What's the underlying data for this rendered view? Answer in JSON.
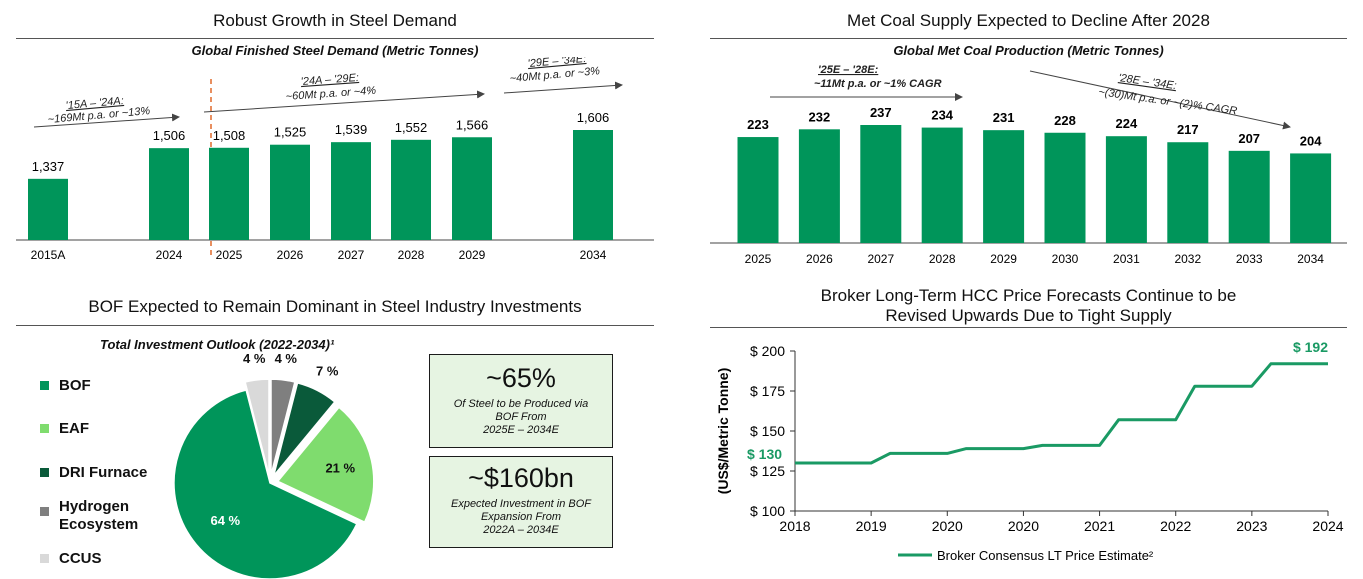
{
  "steel": {
    "title": "Robust Growth in Steel Demand",
    "subtitle": "Global Finished Steel Demand (Metric Tonnes)",
    "annotations": [
      {
        "line1": "'15A – '24A:",
        "line2": "~169Mt p.a. or ~13%"
      },
      {
        "line1": "'24A – '29E:",
        "line2": "~60Mt p.a. or ~4%"
      },
      {
        "line1": "'29E – '34E:",
        "line2": "~40Mt p.a. or ~3%"
      }
    ]
  },
  "coal": {
    "title": "Met Coal Supply Expected to Decline After 2028",
    "subtitle": "Global Met Coal Production (Metric Tonnes)",
    "annotations": [
      {
        "line1": "'25E – '28E:",
        "line2": "~11Mt p.a. or ~1% CAGR"
      },
      {
        "line1": "'28E – '34E:",
        "line2": "~(30)Mt p.a. or ~(2)% CAGR"
      }
    ]
  },
  "bof": {
    "title": "BOF Expected to Remain Dominant in Steel Industry Investments",
    "subtitle": "Total Investment Outlook (2022-2034)¹",
    "legend": [
      "BOF",
      "EAF",
      "DRI Furnace",
      "Hydrogen Ecosystem",
      "CCUS"
    ],
    "callouts": [
      {
        "big": "~65%",
        "text": [
          "Of Steel to be Produced via",
          "BOF From",
          "2025E – 2034E"
        ]
      },
      {
        "big": "~$160bn",
        "text": [
          "Expected Investment in BOF",
          "Expansion From",
          "2022A – 2034E"
        ]
      }
    ]
  },
  "broker": {
    "title_line1": "Broker Long-Term HCC Price Forecasts Continue to be",
    "title_line2": "Revised Upwards Due to Tight Supply"
  },
  "chart_data": [
    {
      "type": "bar",
      "title": "Global Finished Steel Demand (Metric Tonnes)",
      "categories": [
        "2015A",
        "2024",
        "2025",
        "2026",
        "2027",
        "2028",
        "2029",
        "2034"
      ],
      "values": [
        1337,
        1506,
        1508,
        1525,
        1539,
        1552,
        1566,
        1606
      ],
      "labels": [
        "1,337",
        "1,506",
        "1,508",
        "1,525",
        "1,539",
        "1,552",
        "1,566",
        "1,606"
      ],
      "color": "#00955a"
    },
    {
      "type": "bar",
      "title": "Global Met Coal Production (Metric Tonnes)",
      "categories": [
        "2025",
        "2026",
        "2027",
        "2028",
        "2029",
        "2030",
        "2031",
        "2032",
        "2033",
        "2034"
      ],
      "values": [
        223,
        232,
        237,
        234,
        231,
        228,
        224,
        217,
        207,
        204
      ],
      "color": "#00955a"
    },
    {
      "type": "pie",
      "title": "Total Investment Outlook (2022-2034)¹",
      "categories": [
        "BOF",
        "EAF",
        "DRI Furnace",
        "Hydrogen Ecosystem",
        "CCUS"
      ],
      "values": [
        64,
        21,
        7,
        4,
        4
      ],
      "labels": [
        "64 %",
        "21 %",
        "7 %",
        "4 %",
        "4 %"
      ],
      "colors": [
        "#00955a",
        "#7fdc6e",
        "#0a5a3a",
        "#7f7f7f",
        "#d9d9d9"
      ]
    },
    {
      "type": "line",
      "ylabel": "(US$/Metric Tonne)",
      "ylim": [
        100,
        200
      ],
      "yticks": [
        100,
        125,
        150,
        175,
        200
      ],
      "ytick_labels": [
        "$ 100",
        "$ 125",
        "$ 150",
        "$ 175",
        "$ 200"
      ],
      "xtick_labels": [
        "2018",
        "2019",
        "2020",
        "2020",
        "2021",
        "2022",
        "2023",
        "2024"
      ],
      "series": [
        {
          "name": "Broker Consensus LT Price Estimate²",
          "color": "#1a9a64",
          "x": [
            0,
            1,
            1.25,
            2,
            2.25,
            3,
            3.25,
            4,
            4.25,
            5,
            5.25,
            6,
            6.25,
            7
          ],
          "values": [
            130,
            130,
            136,
            136,
            139,
            139,
            141,
            141,
            157,
            157,
            178,
            178,
            192,
            192
          ]
        }
      ],
      "start_label": "$ 130",
      "end_label": "$ 192"
    }
  ]
}
